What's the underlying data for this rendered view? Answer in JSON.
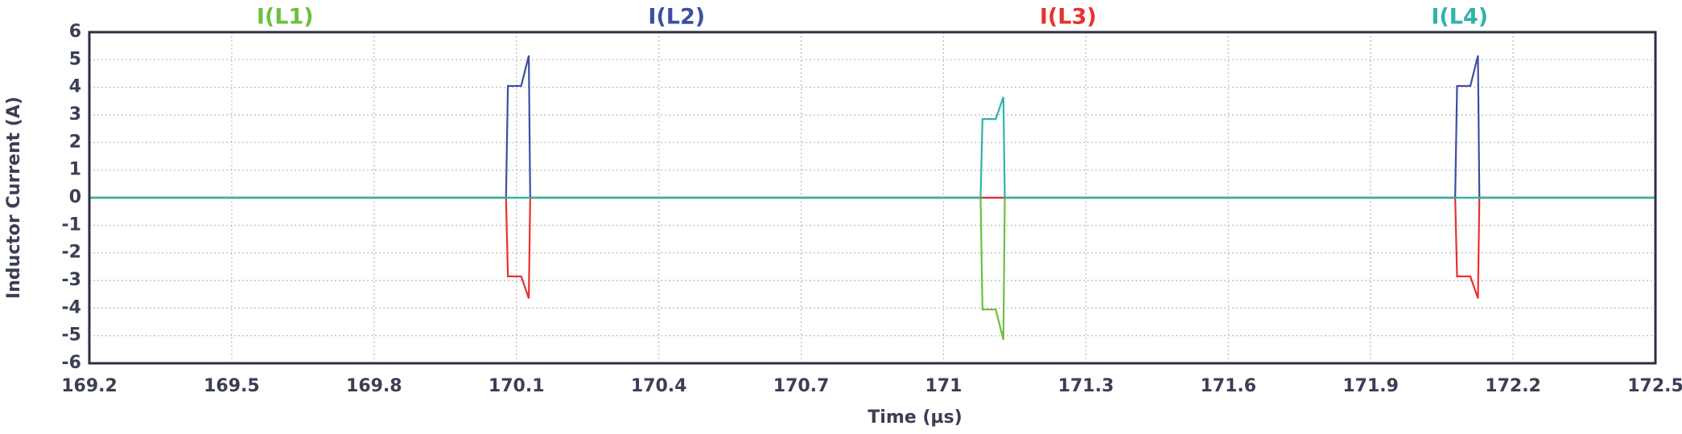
{
  "chart_data": {
    "type": "line",
    "xlabel": "Time (µs)",
    "ylabel": "Inductor Current (A)",
    "xlim": [
      169.2,
      172.5
    ],
    "xticks": [
      169.2,
      169.5,
      169.8,
      170.1,
      170.4,
      170.7,
      171.0,
      171.3,
      171.6,
      171.9,
      172.2,
      172.5
    ],
    "ylim": [
      -6,
      6
    ],
    "yticks": [
      -6,
      -5,
      -4,
      -3,
      -2,
      -1,
      0,
      1,
      2,
      3,
      4,
      5,
      6
    ],
    "grid": true,
    "series": [
      {
        "name": "I(L1)",
        "color": "#6dbf3f",
        "x": [
          169.2,
          171.078,
          171.082,
          171.11,
          171.126,
          171.129,
          172.5
        ],
        "values": [
          0,
          0,
          -4.05,
          -4.05,
          -5.15,
          0,
          0
        ]
      },
      {
        "name": "I(L2)",
        "color": "#3d4fa0",
        "x": [
          169.2,
          170.078,
          170.082,
          170.11,
          170.126,
          170.129,
          172.078,
          172.082,
          172.11,
          172.126,
          172.129,
          172.5
        ],
        "values": [
          0,
          0,
          4.05,
          4.05,
          5.15,
          0,
          0,
          4.05,
          4.05,
          5.15,
          0,
          0
        ]
      },
      {
        "name": "I(L3)",
        "color": "#e8312f",
        "x": [
          169.2,
          170.078,
          170.082,
          170.11,
          170.126,
          170.129,
          172.078,
          172.082,
          172.11,
          172.126,
          172.129,
          172.5
        ],
        "values": [
          0,
          0,
          -2.85,
          -2.85,
          -3.65,
          0,
          0,
          -2.85,
          -2.85,
          -3.65,
          0,
          0
        ]
      },
      {
        "name": "I(L4)",
        "color": "#2fb3aa",
        "x": [
          169.2,
          171.078,
          171.082,
          171.11,
          171.126,
          171.129,
          172.5
        ],
        "values": [
          0,
          0,
          2.85,
          2.85,
          3.65,
          0,
          0
        ]
      }
    ]
  }
}
